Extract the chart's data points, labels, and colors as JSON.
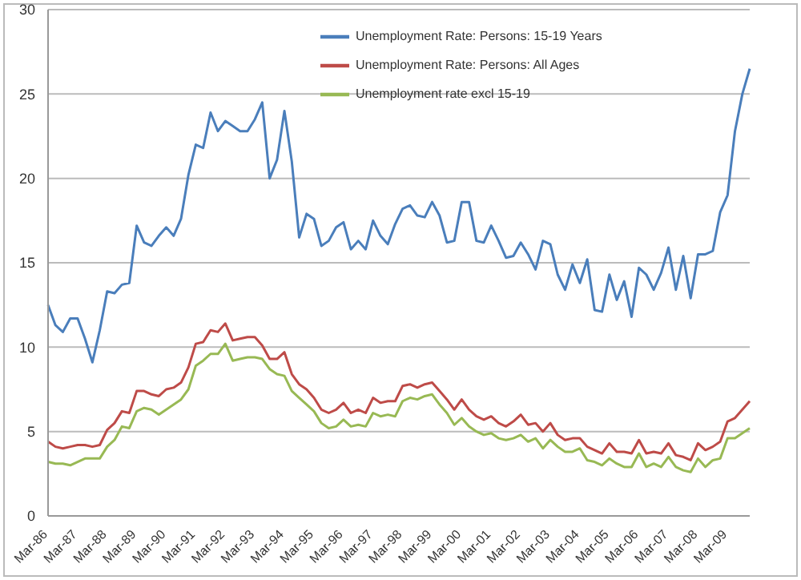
{
  "chart_data": {
    "type": "line",
    "categories": [
      "Mar-86",
      null,
      null,
      null,
      "Mar-87",
      null,
      null,
      null,
      "Mar-88",
      null,
      null,
      null,
      "Mar-89",
      null,
      null,
      null,
      "Mar-90",
      null,
      null,
      null,
      "Mar-91",
      null,
      null,
      null,
      "Mar-92",
      null,
      null,
      null,
      "Mar-93",
      null,
      null,
      null,
      "Mar-94",
      null,
      null,
      null,
      "Mar-95",
      null,
      null,
      null,
      "Mar-96",
      null,
      null,
      null,
      "Mar-97",
      null,
      null,
      null,
      "Mar-98",
      null,
      null,
      null,
      "Mar-99",
      null,
      null,
      null,
      "Mar-00",
      null,
      null,
      null,
      "Mar-01",
      null,
      null,
      null,
      "Mar-02",
      null,
      null,
      null,
      "Mar-03",
      null,
      null,
      null,
      "Mar-04",
      null,
      null,
      null,
      "Mar-05",
      null,
      null,
      null,
      "Mar-06",
      null,
      null,
      null,
      "Mar-07",
      null,
      null,
      null,
      "Mar-08",
      null,
      null,
      null,
      "Mar-09",
      null,
      null,
      null
    ],
    "series": [
      {
        "name": "Unemployment Rate: Persons: 15-19 Years",
        "color": "#4a7ebb",
        "values": [
          12.5,
          11.3,
          10.9,
          11.7,
          11.7,
          10.5,
          9.1,
          11.0,
          13.3,
          13.2,
          13.7,
          13.8,
          17.2,
          16.2,
          16.0,
          16.6,
          17.1,
          16.6,
          17.6,
          20.2,
          22.0,
          21.8,
          23.9,
          22.8,
          23.4,
          23.1,
          22.8,
          22.8,
          23.5,
          24.5,
          20.0,
          21.1,
          24.0,
          21.0,
          16.5,
          17.9,
          17.6,
          16.0,
          16.3,
          17.1,
          17.4,
          15.8,
          16.3,
          15.8,
          17.5,
          16.6,
          16.1,
          17.3,
          18.2,
          18.4,
          17.8,
          17.7,
          18.6,
          17.8,
          16.2,
          16.3,
          18.6,
          18.6,
          16.3,
          16.2,
          17.2,
          16.3,
          15.3,
          15.4,
          16.2,
          15.5,
          14.6,
          16.3,
          16.1,
          14.3,
          13.4,
          14.9,
          13.8,
          15.2,
          12.2,
          12.1,
          14.3,
          12.8,
          13.9,
          11.8,
          14.7,
          14.3,
          13.4,
          14.4,
          15.9,
          13.4,
          15.4,
          12.9,
          15.5,
          15.5,
          15.7,
          18.0,
          19.0,
          22.8,
          25.0,
          26.5
        ]
      },
      {
        "name": "Unemployment Rate: Persons: All Ages",
        "color": "#be4b48",
        "values": [
          4.4,
          4.1,
          4.0,
          4.1,
          4.2,
          4.2,
          4.1,
          4.2,
          5.1,
          5.5,
          6.2,
          6.1,
          7.4,
          7.4,
          7.2,
          7.1,
          7.5,
          7.6,
          7.9,
          8.8,
          10.2,
          10.3,
          11.0,
          10.9,
          11.4,
          10.4,
          10.5,
          10.6,
          10.6,
          10.1,
          9.3,
          9.3,
          9.7,
          8.4,
          7.8,
          7.5,
          7.0,
          6.3,
          6.1,
          6.3,
          6.7,
          6.1,
          6.3,
          6.1,
          7.0,
          6.7,
          6.8,
          6.8,
          7.7,
          7.8,
          7.6,
          7.8,
          7.9,
          7.4,
          6.9,
          6.3,
          6.9,
          6.3,
          5.9,
          5.7,
          5.9,
          5.5,
          5.3,
          5.6,
          6.0,
          5.4,
          5.5,
          5.0,
          5.5,
          4.8,
          4.5,
          4.6,
          4.6,
          4.1,
          3.9,
          3.7,
          4.3,
          3.8,
          3.8,
          3.7,
          4.5,
          3.7,
          3.8,
          3.7,
          4.3,
          3.6,
          3.5,
          3.3,
          4.3,
          3.9,
          4.1,
          4.4,
          5.6,
          5.8,
          6.3,
          6.8
        ]
      },
      {
        "name": "Unemployment rate excl 15-19",
        "color": "#98b954",
        "values": [
          3.2,
          3.1,
          3.1,
          3.0,
          3.2,
          3.4,
          3.4,
          3.4,
          4.1,
          4.5,
          5.3,
          5.2,
          6.2,
          6.4,
          6.3,
          6.0,
          6.3,
          6.6,
          6.9,
          7.5,
          8.9,
          9.2,
          9.6,
          9.6,
          10.2,
          9.2,
          9.3,
          9.4,
          9.4,
          9.3,
          8.7,
          8.4,
          8.3,
          7.4,
          7.0,
          6.6,
          6.2,
          5.5,
          5.2,
          5.3,
          5.7,
          5.3,
          5.4,
          5.3,
          6.1,
          5.9,
          6.0,
          5.9,
          6.8,
          7.0,
          6.9,
          7.1,
          7.2,
          6.6,
          6.1,
          5.4,
          5.8,
          5.3,
          5.0,
          4.8,
          4.9,
          4.6,
          4.5,
          4.6,
          4.8,
          4.4,
          4.6,
          4.0,
          4.5,
          4.1,
          3.8,
          3.8,
          4.0,
          3.3,
          3.2,
          3.0,
          3.4,
          3.1,
          2.9,
          2.9,
          3.7,
          2.9,
          3.1,
          2.9,
          3.5,
          2.9,
          2.7,
          2.6,
          3.4,
          2.9,
          3.3,
          3.4,
          4.6,
          4.6,
          4.9,
          5.2
        ]
      }
    ],
    "ylim": [
      0,
      30
    ],
    "yticks": [
      0,
      5,
      10,
      15,
      20,
      25,
      30
    ],
    "grid": "y",
    "legend": "top right",
    "marker": "none",
    "line_style": "solid"
  }
}
